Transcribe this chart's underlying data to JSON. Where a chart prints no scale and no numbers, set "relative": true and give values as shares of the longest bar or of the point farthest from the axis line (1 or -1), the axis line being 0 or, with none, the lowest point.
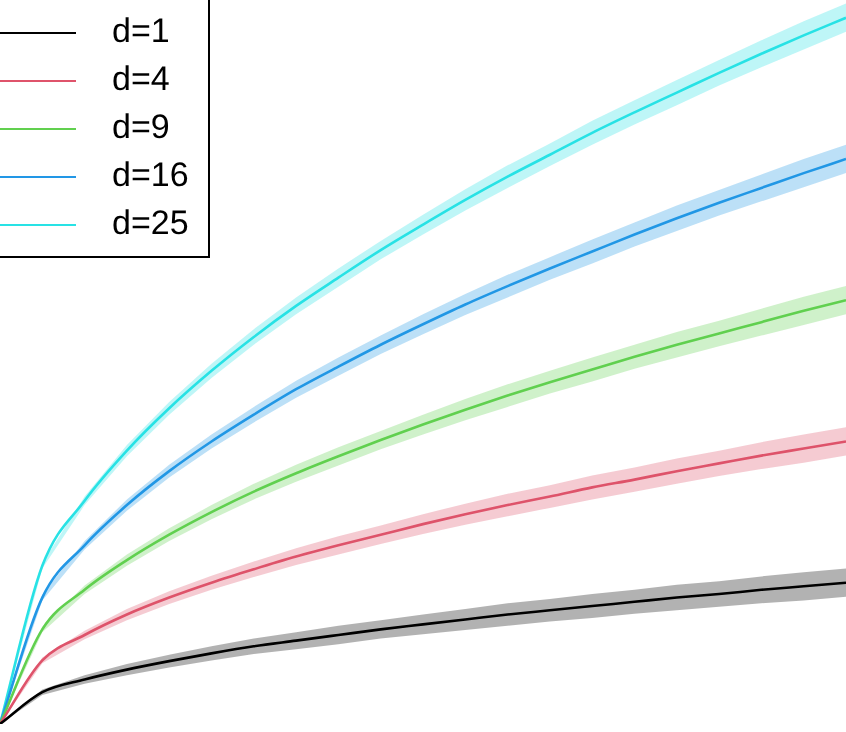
{
  "chart_data": {
    "type": "line",
    "relative": true,
    "legend": "top left",
    "marker": "none",
    "line_style": "solid",
    "categories": [
      null,
      null,
      null,
      null,
      null,
      null,
      null,
      null,
      null,
      null,
      null,
      null,
      null,
      null,
      null,
      null,
      null,
      null,
      null,
      null,
      null
    ],
    "series": [
      {
        "name": "d=1",
        "color": "#000000",
        "values": [
          0,
          0.045,
          0.063,
          0.077,
          0.089,
          0.1,
          0.11,
          0.118,
          0.126,
          0.134,
          0.141,
          0.148,
          0.155,
          0.161,
          0.167,
          0.173,
          0.179,
          0.184,
          0.19,
          0.195,
          0.2
        ],
        "lower": [
          0,
          0.041,
          0.057,
          0.069,
          0.08,
          0.09,
          0.099,
          0.106,
          0.113,
          0.121,
          0.127,
          0.133,
          0.139,
          0.145,
          0.15,
          0.156,
          0.161,
          0.166,
          0.171,
          0.175,
          0.18
        ],
        "upper": [
          0,
          0.049,
          0.069,
          0.085,
          0.098,
          0.11,
          0.121,
          0.13,
          0.139,
          0.147,
          0.155,
          0.163,
          0.171,
          0.177,
          0.184,
          0.19,
          0.197,
          0.202,
          0.209,
          0.215,
          0.22
        ]
      },
      {
        "name": "d=4",
        "color": "#df536b",
        "values": [
          0,
          0.09,
          0.126,
          0.155,
          0.179,
          0.2,
          0.219,
          0.237,
          0.253,
          0.268,
          0.283,
          0.297,
          0.31,
          0.322,
          0.335,
          0.346,
          0.358,
          0.369,
          0.38,
          0.39,
          0.4
        ],
        "lower": [
          0,
          0.086,
          0.12,
          0.147,
          0.17,
          0.19,
          0.208,
          0.225,
          0.24,
          0.255,
          0.269,
          0.282,
          0.294,
          0.306,
          0.318,
          0.329,
          0.34,
          0.351,
          0.361,
          0.37,
          0.38
        ],
        "upper": [
          0,
          0.094,
          0.132,
          0.163,
          0.188,
          0.21,
          0.23,
          0.249,
          0.266,
          0.281,
          0.297,
          0.312,
          0.326,
          0.338,
          0.352,
          0.363,
          0.376,
          0.387,
          0.399,
          0.41,
          0.42
        ]
      },
      {
        "name": "d=9",
        "color": "#61d04f",
        "values": [
          0,
          0.134,
          0.19,
          0.232,
          0.268,
          0.3,
          0.329,
          0.355,
          0.379,
          0.402,
          0.424,
          0.445,
          0.465,
          0.484,
          0.502,
          0.52,
          0.537,
          0.553,
          0.569,
          0.585,
          0.6
        ],
        "lower": [
          0,
          0.13,
          0.184,
          0.224,
          0.259,
          0.29,
          0.318,
          0.343,
          0.366,
          0.389,
          0.41,
          0.43,
          0.449,
          0.468,
          0.485,
          0.503,
          0.519,
          0.535,
          0.55,
          0.565,
          0.58
        ],
        "upper": [
          0,
          0.138,
          0.196,
          0.24,
          0.277,
          0.31,
          0.34,
          0.367,
          0.392,
          0.415,
          0.438,
          0.46,
          0.481,
          0.5,
          0.519,
          0.537,
          0.555,
          0.571,
          0.588,
          0.605,
          0.62
        ]
      },
      {
        "name": "d=16",
        "color": "#2297e6",
        "values": [
          0,
          0.179,
          0.253,
          0.31,
          0.358,
          0.4,
          0.438,
          0.474,
          0.506,
          0.537,
          0.566,
          0.594,
          0.62,
          0.645,
          0.669,
          0.693,
          0.716,
          0.738,
          0.759,
          0.78,
          0.8
        ],
        "lower": [
          0,
          0.175,
          0.247,
          0.302,
          0.349,
          0.39,
          0.427,
          0.462,
          0.493,
          0.524,
          0.552,
          0.579,
          0.604,
          0.629,
          0.652,
          0.676,
          0.698,
          0.72,
          0.74,
          0.76,
          0.78
        ],
        "upper": [
          0,
          0.183,
          0.259,
          0.318,
          0.367,
          0.41,
          0.449,
          0.486,
          0.519,
          0.55,
          0.58,
          0.609,
          0.636,
          0.661,
          0.686,
          0.71,
          0.734,
          0.756,
          0.778,
          0.8,
          0.82
        ]
      },
      {
        "name": "d=25",
        "color": "#28e2e5",
        "values": [
          0,
          0.224,
          0.316,
          0.387,
          0.447,
          0.5,
          0.548,
          0.592,
          0.632,
          0.671,
          0.707,
          0.742,
          0.775,
          0.806,
          0.837,
          0.866,
          0.894,
          0.922,
          0.949,
          0.975,
          1
        ],
        "lower": [
          0,
          0.22,
          0.31,
          0.379,
          0.438,
          0.49,
          0.537,
          0.58,
          0.619,
          0.658,
          0.693,
          0.727,
          0.759,
          0.79,
          0.82,
          0.849,
          0.876,
          0.904,
          0.93,
          0.955,
          0.98
        ],
        "upper": [
          0,
          0.228,
          0.322,
          0.395,
          0.456,
          0.51,
          0.559,
          0.604,
          0.645,
          0.684,
          0.721,
          0.757,
          0.791,
          0.822,
          0.854,
          0.883,
          0.912,
          0.94,
          0.968,
          0.995,
          1.02
        ]
      }
    ]
  }
}
